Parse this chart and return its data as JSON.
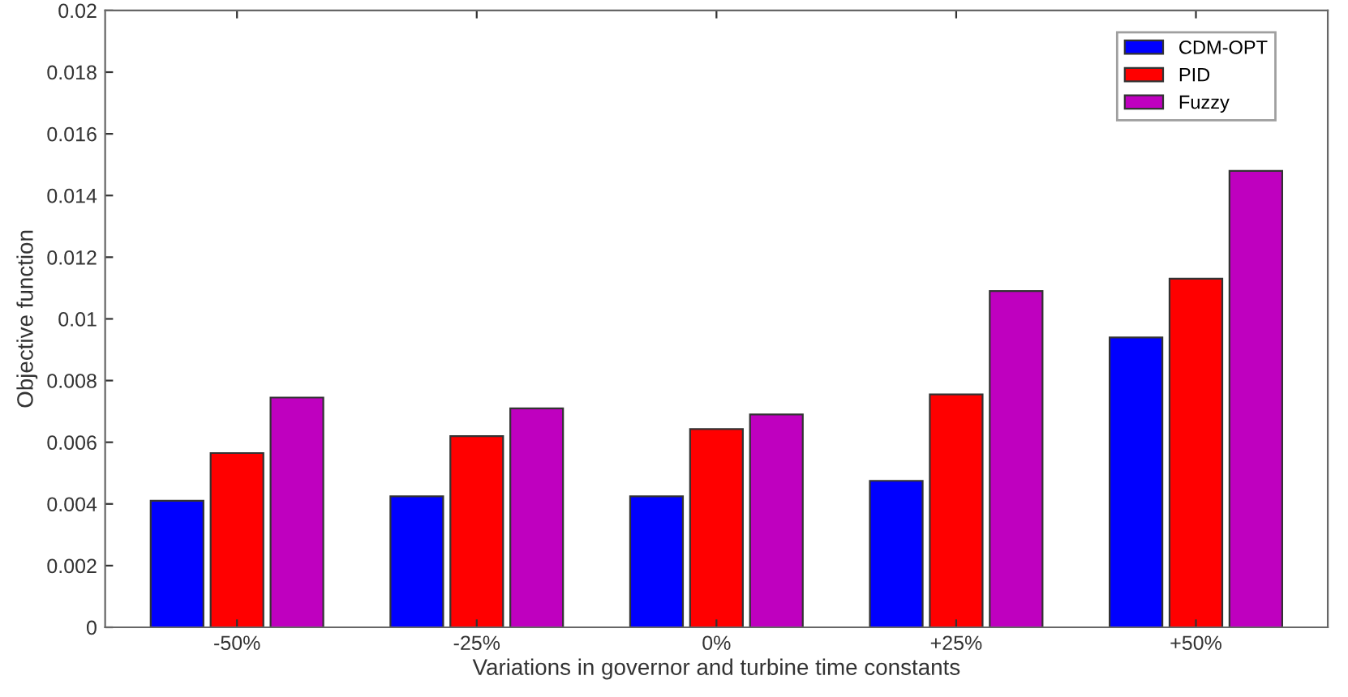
{
  "chart_data": {
    "type": "bar",
    "xlabel": "Variations in governor and turbine time constants",
    "ylabel": "Objective function",
    "categories": [
      "-50%",
      "-25%",
      "0%",
      "+25%",
      "+50%"
    ],
    "series": [
      {
        "name": "CDM-OPT",
        "color": "#0000ff",
        "values": [
          0.0041,
          0.00425,
          0.00425,
          0.00475,
          0.0094
        ]
      },
      {
        "name": "PID",
        "color": "#ff0000",
        "values": [
          0.00565,
          0.0062,
          0.00643,
          0.00755,
          0.0113
        ]
      },
      {
        "name": "Fuzzy",
        "color": "#bf00bf",
        "values": [
          0.00745,
          0.0071,
          0.0069,
          0.0109,
          0.0148
        ]
      }
    ],
    "ylim": [
      0,
      0.02
    ],
    "yticks": [
      0,
      0.002,
      0.004,
      0.006,
      0.008,
      0.01,
      0.012,
      0.014,
      0.016,
      0.018,
      0.02
    ],
    "grid": false,
    "legend": "top right"
  }
}
